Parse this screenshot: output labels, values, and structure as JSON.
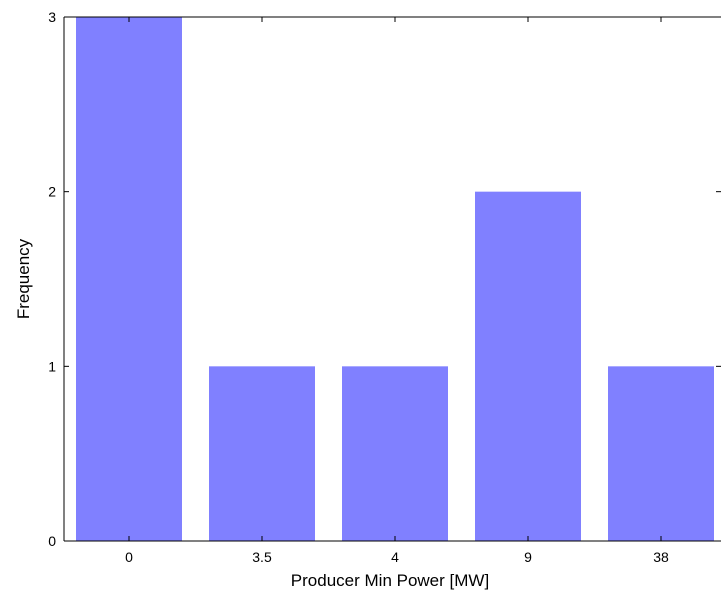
{
  "chart_data": {
    "type": "bar",
    "categories": [
      "0",
      "3.5",
      "4",
      "9",
      "38"
    ],
    "values": [
      3,
      1,
      1,
      2,
      1
    ],
    "title": "",
    "xlabel": "Producer Min Power [MW]",
    "ylabel": "Frequency",
    "ylim": [
      0,
      3
    ],
    "yticks": [
      0,
      1,
      2,
      3
    ],
    "grid": false,
    "bar_color": "#8080ff"
  }
}
